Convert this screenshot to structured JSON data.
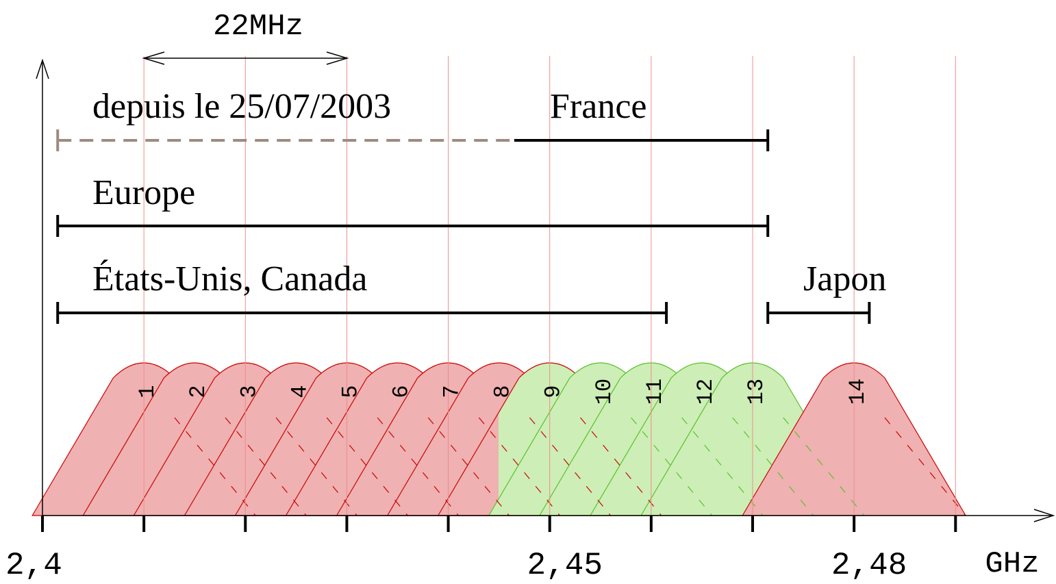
{
  "span_annotation": {
    "label": "22MHz"
  },
  "regions": [
    {
      "label": "depuis le 25/07/2003",
      "from": 2.4015,
      "to": 2.4465,
      "style": "dashed",
      "color": "#9e8a80"
    },
    {
      "label": "France",
      "from": 2.4465,
      "to": 2.4715,
      "style": "solid",
      "color": "#000000"
    },
    {
      "label": "Europe",
      "from": 2.4015,
      "to": 2.4715,
      "style": "solid",
      "color": "#000000"
    },
    {
      "label": "États-Unis, Canada",
      "from": 2.4015,
      "to": 2.4615,
      "style": "solid",
      "color": "#000000"
    },
    {
      "label": "Japon",
      "from": 2.4715,
      "to": 2.4815,
      "style": "solid",
      "color": "#000000"
    }
  ],
  "axis": {
    "x_range": [
      2.4,
      2.4905
    ],
    "unit_label": "GHz",
    "tick_labels": [
      {
        "value": 2.4,
        "label": "2,4"
      },
      {
        "value": 2.45,
        "label": "2,45"
      },
      {
        "value": 2.48,
        "label": "2,48"
      }
    ]
  },
  "channels": [
    {
      "label": "1",
      "center": 2.41,
      "color": "red"
    },
    {
      "label": "2",
      "center": 2.415,
      "color": "red"
    },
    {
      "label": "3",
      "center": 2.42,
      "color": "red"
    },
    {
      "label": "4",
      "center": 2.425,
      "color": "red"
    },
    {
      "label": "5",
      "center": 2.43,
      "color": "red"
    },
    {
      "label": "6",
      "center": 2.435,
      "color": "red"
    },
    {
      "label": "7",
      "center": 2.44,
      "color": "red"
    },
    {
      "label": "8",
      "center": 2.445,
      "color": "red"
    },
    {
      "label": "9",
      "center": 2.45,
      "color": "red"
    },
    {
      "label": "10",
      "center": 2.455,
      "color": "green"
    },
    {
      "label": "11",
      "center": 2.46,
      "color": "green"
    },
    {
      "label": "12",
      "center": 2.465,
      "color": "green"
    },
    {
      "label": "13",
      "center": 2.47,
      "color": "green"
    },
    {
      "label": "14",
      "center": 2.48,
      "color": "red"
    }
  ],
  "channel_width_mhz": 22,
  "colors": {
    "red_fill": "#efb1b1",
    "red_stroke": "#cc0000",
    "green_fill": "#cdeeb6",
    "green_stroke": "#59c02a",
    "gridline": "#f08c8c"
  }
}
